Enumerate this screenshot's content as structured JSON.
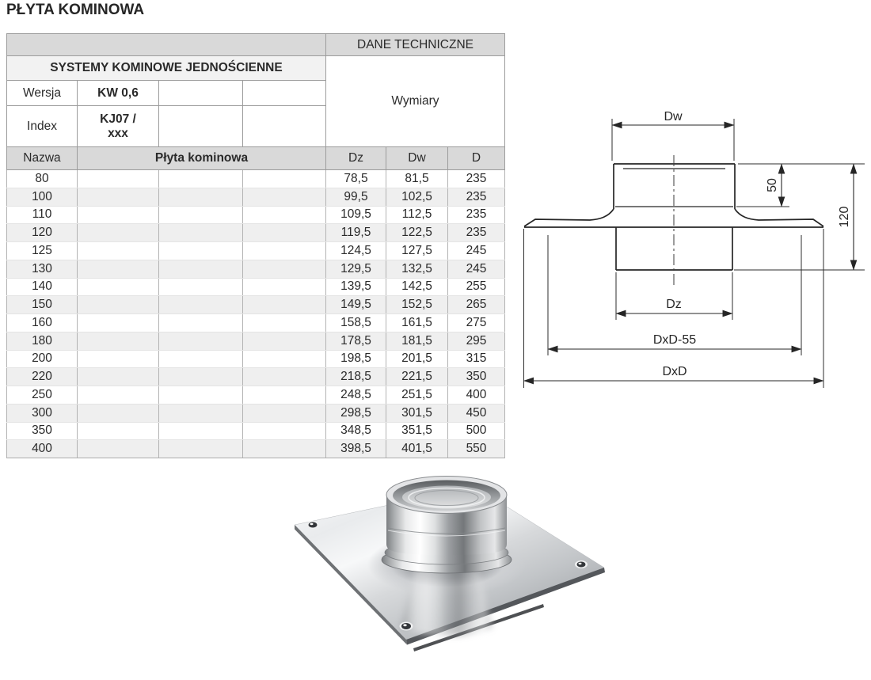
{
  "page": {
    "title": "PŁYTA KOMINOWA"
  },
  "table": {
    "dane_techniczne": "DANE TECHNICZNE",
    "group_header": "SYSTEMY KOMINOWE JEDNOŚCIENNE",
    "wymiary": "Wymiary",
    "wersja_label": "Wersja",
    "wersja_value": "KW 0,6",
    "index_label": "Index",
    "index_value": "KJ07 /\nxxx",
    "nazwa_label": "Nazwa",
    "nazwa_value": "Płyta kominowa",
    "columns": {
      "dz": "Dz",
      "dw": "Dw",
      "d": "D"
    },
    "rows": [
      {
        "name": "80",
        "dz": "78,5",
        "dw": "81,5",
        "d": "235"
      },
      {
        "name": "100",
        "dz": "99,5",
        "dw": "102,5",
        "d": "235"
      },
      {
        "name": "110",
        "dz": "109,5",
        "dw": "112,5",
        "d": "235"
      },
      {
        "name": "120",
        "dz": "119,5",
        "dw": "122,5",
        "d": "235"
      },
      {
        "name": "125",
        "dz": "124,5",
        "dw": "127,5",
        "d": "245"
      },
      {
        "name": "130",
        "dz": "129,5",
        "dw": "132,5",
        "d": "245"
      },
      {
        "name": "140",
        "dz": "139,5",
        "dw": "142,5",
        "d": "255"
      },
      {
        "name": "150",
        "dz": "149,5",
        "dw": "152,5",
        "d": "265"
      },
      {
        "name": "160",
        "dz": "158,5",
        "dw": "161,5",
        "d": "275"
      },
      {
        "name": "180",
        "dz": "178,5",
        "dw": "181,5",
        "d": "295"
      },
      {
        "name": "200",
        "dz": "198,5",
        "dw": "201,5",
        "d": "315"
      },
      {
        "name": "220",
        "dz": "218,5",
        "dw": "221,5",
        "d": "350"
      },
      {
        "name": "250",
        "dz": "248,5",
        "dw": "251,5",
        "d": "400"
      },
      {
        "name": "300",
        "dz": "298,5",
        "dw": "301,5",
        "d": "450"
      },
      {
        "name": "350",
        "dz": "348,5",
        "dw": "351,5",
        "d": "500"
      },
      {
        "name": "400",
        "dz": "398,5",
        "dw": "401,5",
        "d": "550"
      }
    ]
  },
  "diagram": {
    "labels": {
      "dw": "Dw",
      "collar_height": "50",
      "total_height": "120",
      "dz": "Dz",
      "dxd_minus_55": "DxD-55",
      "dxd": "DxD"
    }
  },
  "colors": {
    "header_fill": "#d9d9d9",
    "group_fill": "#f2f2f2",
    "alt_row_fill": "#efefef",
    "border": "#9c9c9c",
    "line": "#262626"
  }
}
